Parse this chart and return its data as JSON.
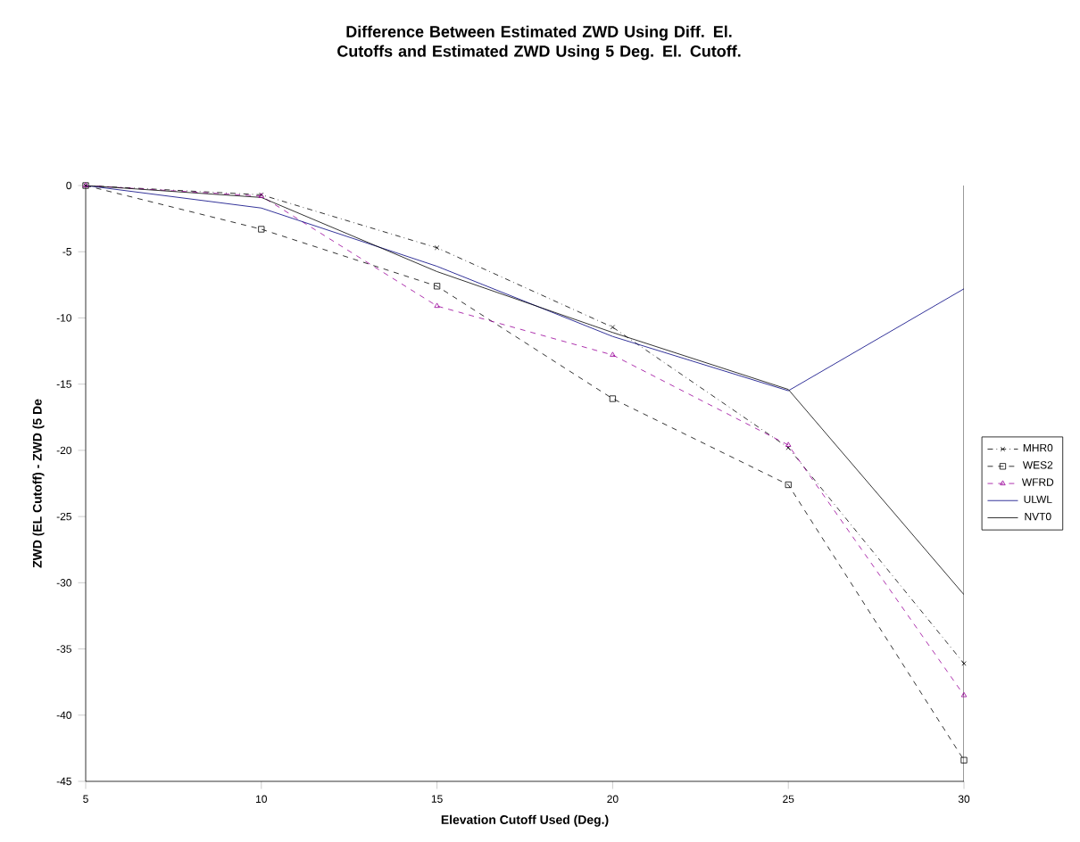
{
  "chart_data": {
    "type": "line",
    "title": "Difference Between Estimated ZWD Using Diff. El. Cutoffs and Estimated ZWD Using 5 Deg. El. Cutoff.",
    "xlabel": "Elevation Cutoff Used (Deg.)",
    "ylabel": "ZWD (EL Cutoff) - ZWD (5 De",
    "x": [
      5,
      10,
      15,
      20,
      25,
      30
    ],
    "series": [
      {
        "name": "MHR0",
        "color": "#000000",
        "marker": "cross",
        "line_style": "dashdot",
        "values": [
          0,
          -0.7,
          -4.7,
          -10.7,
          -19.8,
          -36.1
        ]
      },
      {
        "name": "WES2",
        "color": "#000000",
        "marker": "square",
        "line_style": "dashed",
        "values": [
          0,
          -3.3,
          -7.6,
          -16.1,
          -22.6,
          -43.4
        ]
      },
      {
        "name": "WFRD",
        "color": "#990099",
        "marker": "triangle",
        "line_style": "dashed",
        "values": [
          0,
          -0.8,
          -9.1,
          -12.8,
          -19.6,
          -38.5
        ]
      },
      {
        "name": "ULWL",
        "color": "#000080",
        "marker": "none",
        "line_style": "solid",
        "values": [
          0,
          -1.7,
          -6.1,
          -11.4,
          -15.5,
          -7.8
        ]
      },
      {
        "name": "NVT0",
        "color": "#000000",
        "marker": "none",
        "line_style": "solid",
        "values": [
          0,
          -0.9,
          -6.5,
          -11.1,
          -15.4,
          -30.9
        ]
      }
    ],
    "xlim": [
      5,
      30
    ],
    "xticks": [
      5,
      10,
      15,
      20,
      25,
      30
    ],
    "ylim": [
      -45,
      0
    ],
    "yticks": [
      -45,
      -40,
      -35,
      -30,
      -25,
      -20,
      -15,
      -10,
      -5,
      0
    ],
    "grid": false,
    "legend": "right"
  }
}
